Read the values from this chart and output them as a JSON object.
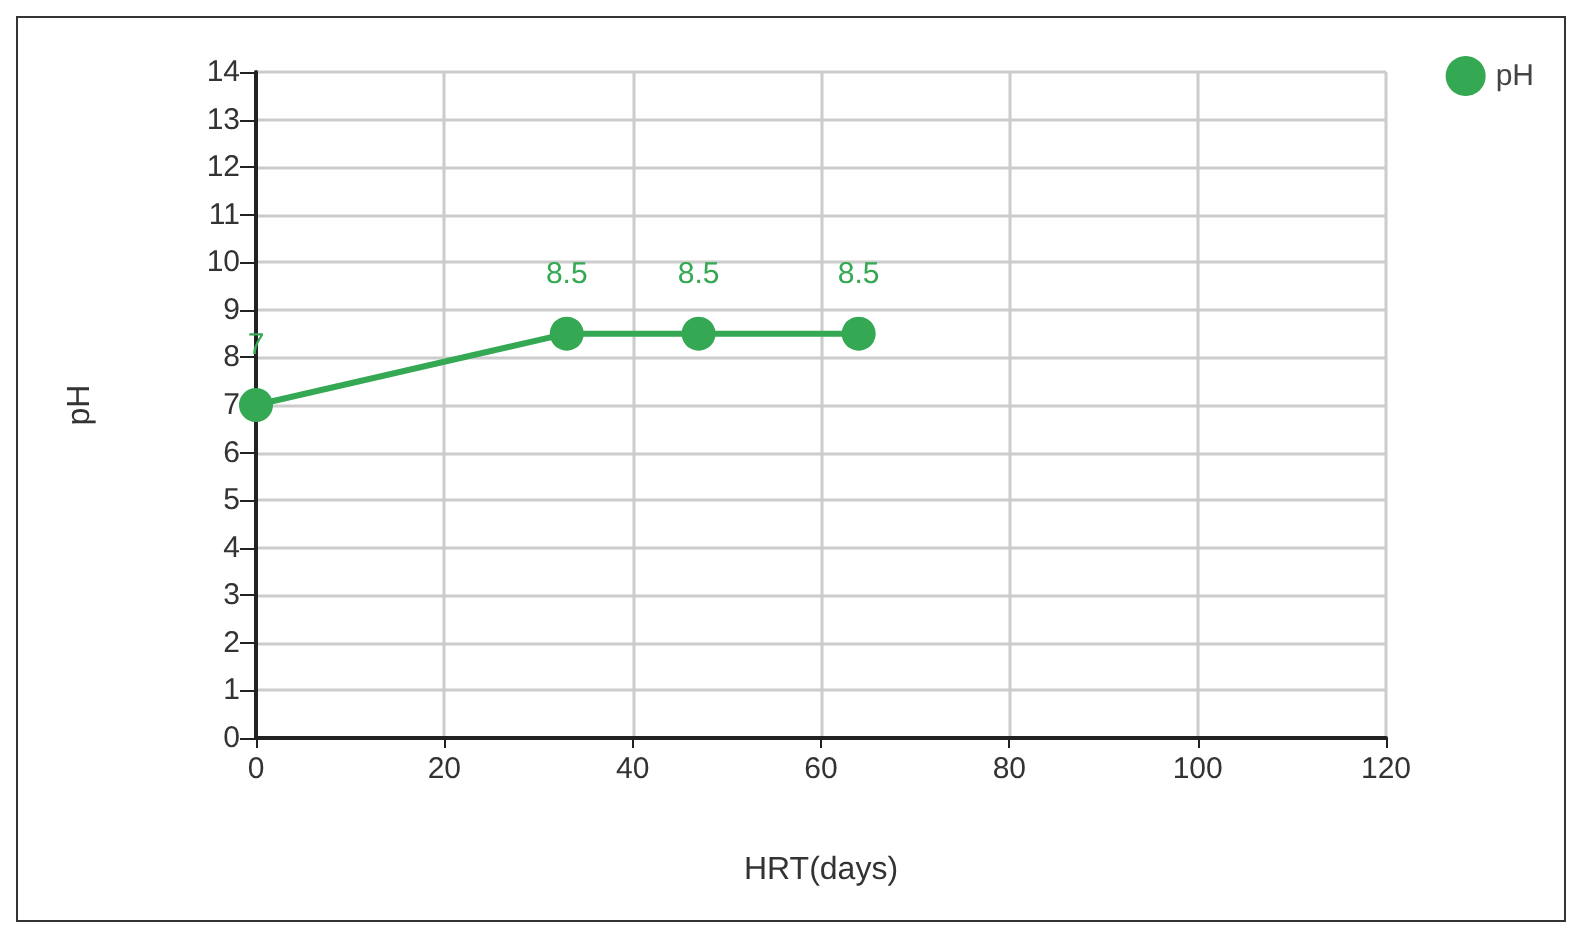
{
  "chart_data": {
    "type": "line",
    "xlabel": "HRT(days)",
    "ylabel": "pH",
    "x": [
      0,
      33,
      47,
      64
    ],
    "series": [
      {
        "name": "pH",
        "color": "#34a853",
        "values": [
          7,
          8.5,
          8.5,
          8.5
        ]
      }
    ],
    "xlim": [
      0,
      120
    ],
    "xticks": [
      0,
      20,
      40,
      60,
      80,
      100,
      120
    ],
    "ylim": [
      0,
      14
    ],
    "yticks": [
      0,
      1,
      2,
      3,
      4,
      5,
      6,
      7,
      8,
      9,
      10,
      11,
      12,
      13,
      14
    ],
    "grid": true,
    "legend": "top right",
    "marker": "circle",
    "line_style": "solid",
    "data_labels": true
  }
}
